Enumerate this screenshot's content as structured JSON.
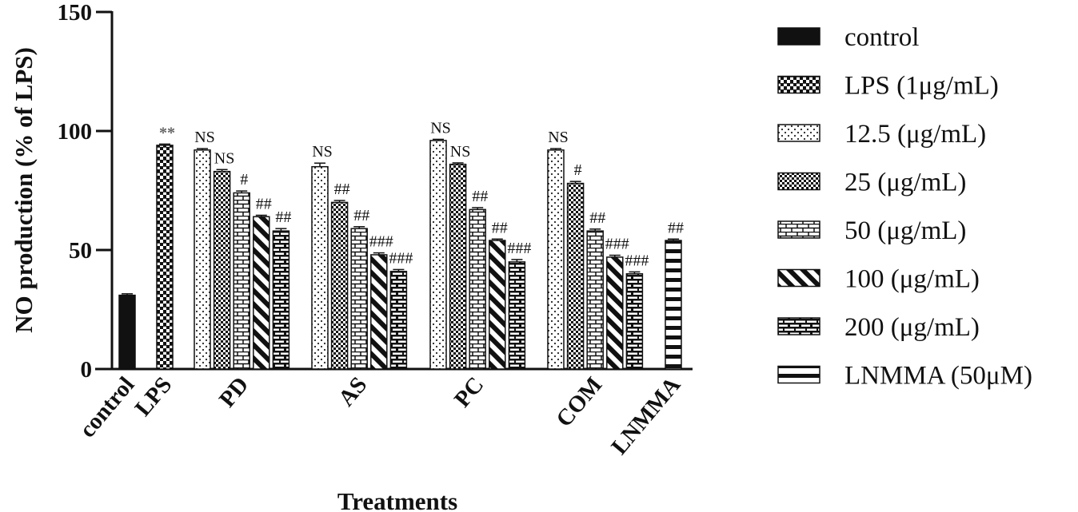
{
  "chart_data": {
    "type": "bar",
    "title": "",
    "xlabel": "Treatments",
    "ylabel": "NO production (% of LPS)",
    "ylim": [
      0,
      150
    ],
    "yticks": [
      0,
      50,
      100,
      150
    ],
    "groups": [
      {
        "name": "control",
        "bars": [
          {
            "series": "control",
            "value": 31,
            "error": 0.6,
            "annotation": ""
          }
        ]
      },
      {
        "name": "LPS",
        "bars": [
          {
            "series": "LPS (1μg/mL)",
            "value": 94,
            "error": 0.5,
            "annotation": "**"
          }
        ]
      },
      {
        "name": "PD",
        "bars": [
          {
            "series": "12.5 (μg/mL)",
            "value": 92,
            "error": 0.6,
            "annotation": "NS"
          },
          {
            "series": "25 (μg/mL)",
            "value": 83,
            "error": 0.8,
            "annotation": "NS"
          },
          {
            "series": "50 (μg/mL)",
            "value": 74,
            "error": 0.8,
            "annotation": "#"
          },
          {
            "series": "100 (μg/mL)",
            "value": 64,
            "error": 0.6,
            "annotation": "##"
          },
          {
            "series": "200 (μg/mL)",
            "value": 58,
            "error": 1.0,
            "annotation": "##"
          }
        ]
      },
      {
        "name": "AS",
        "bars": [
          {
            "series": "12.5 (μg/mL)",
            "value": 85,
            "error": 1.5,
            "annotation": "NS"
          },
          {
            "series": "25 (μg/mL)",
            "value": 70,
            "error": 0.8,
            "annotation": "##"
          },
          {
            "series": "50 (μg/mL)",
            "value": 59,
            "error": 0.8,
            "annotation": "##"
          },
          {
            "series": "100 (μg/mL)",
            "value": 48,
            "error": 0.8,
            "annotation": "###"
          },
          {
            "series": "200 (μg/mL)",
            "value": 41,
            "error": 0.8,
            "annotation": "###"
          }
        ]
      },
      {
        "name": "PC",
        "bars": [
          {
            "series": "12.5 (μg/mL)",
            "value": 96,
            "error": 0.5,
            "annotation": "NS"
          },
          {
            "series": "25 (μg/mL)",
            "value": 86,
            "error": 0.6,
            "annotation": "NS"
          },
          {
            "series": "50 (μg/mL)",
            "value": 67,
            "error": 0.8,
            "annotation": "##"
          },
          {
            "series": "100 (μg/mL)",
            "value": 54,
            "error": 0.6,
            "annotation": "##"
          },
          {
            "series": "200 (μg/mL)",
            "value": 45,
            "error": 1.0,
            "annotation": "###"
          }
        ]
      },
      {
        "name": "COM",
        "bars": [
          {
            "series": "12.5 (μg/mL)",
            "value": 92,
            "error": 0.6,
            "annotation": "NS"
          },
          {
            "series": "25 (μg/mL)",
            "value": 78,
            "error": 0.8,
            "annotation": "#"
          },
          {
            "series": "50 (μg/mL)",
            "value": 58,
            "error": 0.8,
            "annotation": "##"
          },
          {
            "series": "100 (μg/mL)",
            "value": 47,
            "error": 0.8,
            "annotation": "###"
          },
          {
            "series": "200 (μg/mL)",
            "value": 40,
            "error": 0.8,
            "annotation": "###"
          }
        ]
      },
      {
        "name": "LNMMA",
        "bars": [
          {
            "series": "LNMMA (50μM)",
            "value": 54,
            "error": 0.6,
            "annotation": "##"
          }
        ]
      }
    ],
    "legend": [
      {
        "label": "control",
        "pattern": "solid"
      },
      {
        "label": "LPS (1μg/mL)",
        "pattern": "grid"
      },
      {
        "label": "12.5 (μg/mL)",
        "pattern": "dots"
      },
      {
        "label": "25 (μg/mL)",
        "pattern": "checker"
      },
      {
        "label": "50 (μg/mL)",
        "pattern": "bricks-light"
      },
      {
        "label": "100 (μg/mL)",
        "pattern": "diagonal"
      },
      {
        "label": "200 (μg/mL)",
        "pattern": "bricks-dark"
      },
      {
        "label": "LNMMA (50μM)",
        "pattern": "hstripes"
      }
    ],
    "legend_position": "right"
  }
}
